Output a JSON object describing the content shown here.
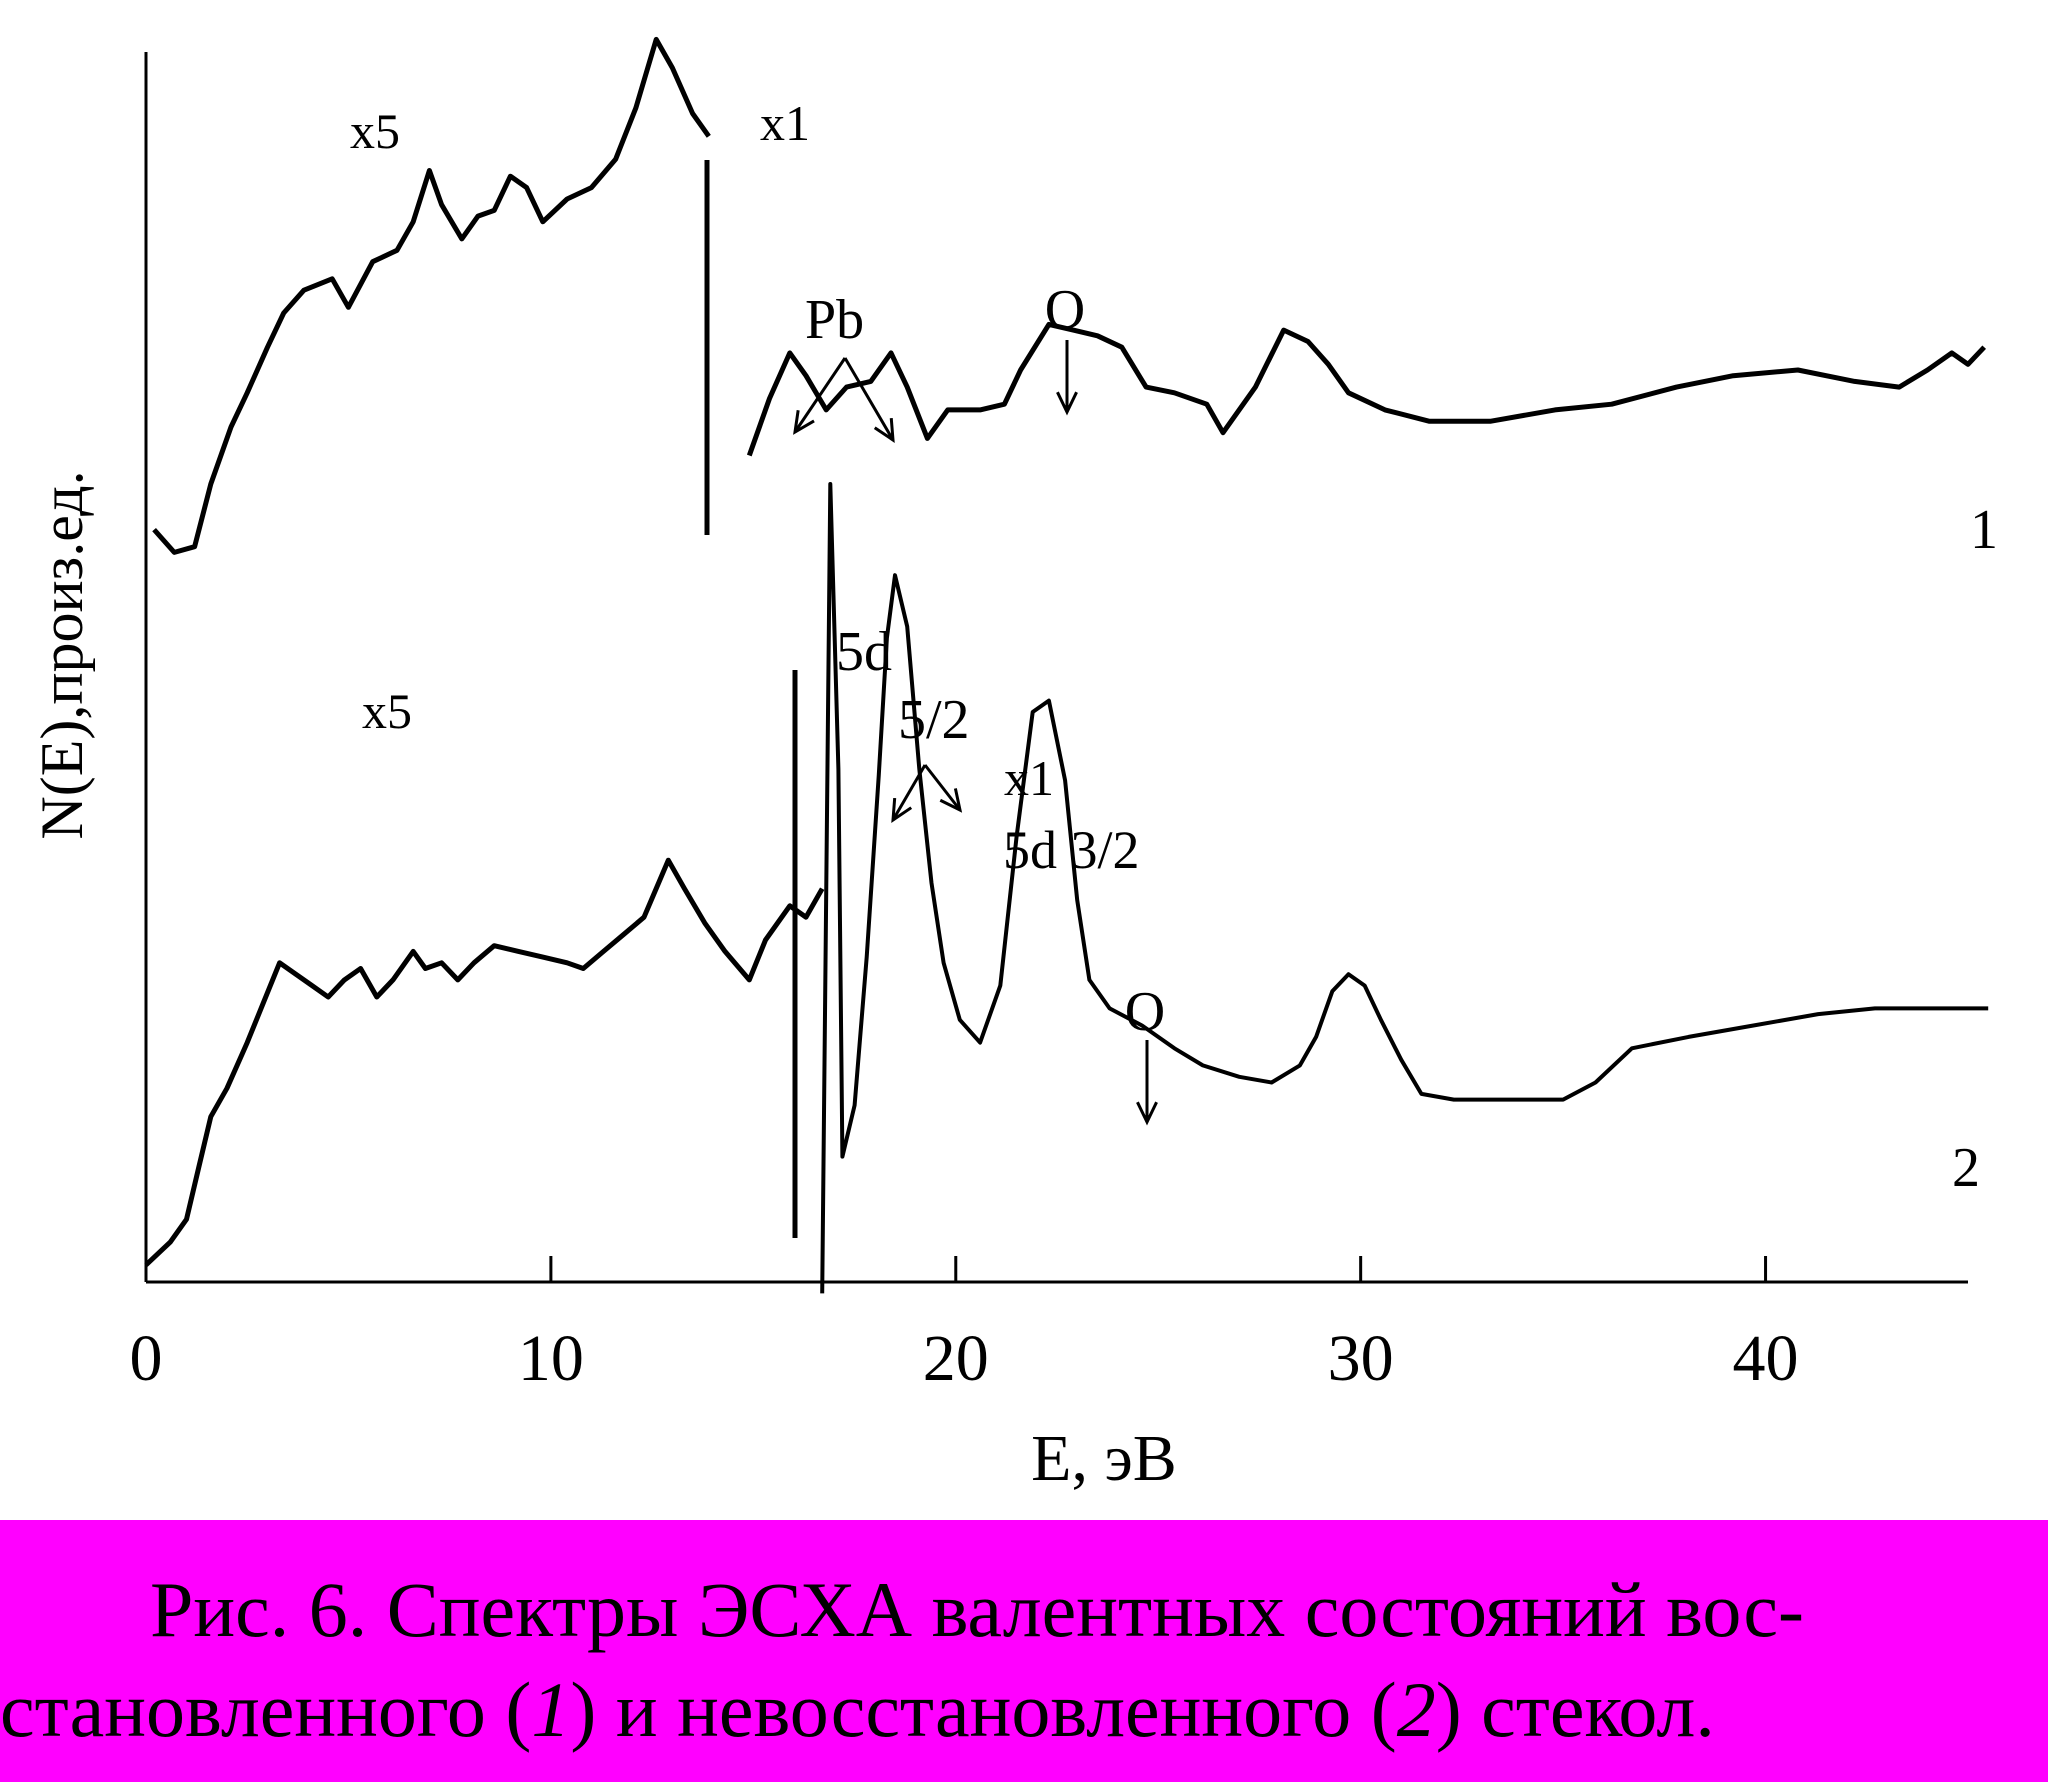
{
  "caption": {
    "line1": "Рис. 6. Спектры ЭСХА валентных состояний вос-",
    "line2_a": "становленного (",
    "line2_num1": "1",
    "line2_b": ") и невосстановленного (",
    "line2_num2": "2",
    "line2_c": ") стекол."
  },
  "colors": {
    "caption_bg": "#ff00ff",
    "line": "#000000",
    "background": "#ffffff"
  },
  "chart_data": {
    "type": "line",
    "title": "",
    "xlabel": "E, эВ",
    "ylabel": "N(E),произ.ед.",
    "xlim": [
      0,
      45
    ],
    "x_ticks": [
      0,
      10,
      20,
      30,
      40
    ],
    "y_ticks": "none",
    "grid": false,
    "series": [
      {
        "name": "1",
        "segments": [
          {
            "scale_label": "x5",
            "points": [
              [
                0.2,
                13.2
              ],
              [
                0.7,
                12.8
              ],
              [
                1.2,
                12.9
              ],
              [
                1.6,
                14.0
              ],
              [
                2.1,
                15.0
              ],
              [
                2.5,
                15.6
              ],
              [
                3.0,
                16.4
              ],
              [
                3.4,
                17.0
              ],
              [
                3.9,
                17.4
              ],
              [
                4.6,
                17.6
              ],
              [
                5.0,
                17.1
              ],
              [
                5.6,
                17.9
              ],
              [
                6.2,
                18.1
              ],
              [
                6.6,
                18.6
              ],
              [
                7.0,
                19.5
              ],
              [
                7.3,
                18.9
              ],
              [
                7.8,
                18.3
              ],
              [
                8.2,
                18.7
              ],
              [
                8.6,
                18.8
              ],
              [
                9.0,
                19.4
              ],
              [
                9.4,
                19.2
              ],
              [
                9.8,
                18.6
              ],
              [
                10.4,
                19.0
              ],
              [
                11.0,
                19.2
              ],
              [
                11.6,
                19.7
              ],
              [
                12.1,
                20.6
              ],
              [
                12.6,
                21.8
              ],
              [
                13.0,
                21.3
              ],
              [
                13.5,
                20.5
              ],
              [
                13.9,
                20.1
              ]
            ]
          },
          {
            "scale_label": "x1",
            "points": [
              [
                14.9,
                14.5
              ],
              [
                15.4,
                15.5
              ],
              [
                15.9,
                16.3
              ],
              [
                16.3,
                15.9
              ],
              [
                16.8,
                15.3
              ],
              [
                17.3,
                15.7
              ],
              [
                17.9,
                15.8
              ],
              [
                18.4,
                16.3
              ],
              [
                18.8,
                15.7
              ],
              [
                19.3,
                14.8
              ],
              [
                19.8,
                15.3
              ],
              [
                20.6,
                15.3
              ],
              [
                21.2,
                15.4
              ],
              [
                21.6,
                16.0
              ],
              [
                22.3,
                16.8
              ],
              [
                22.9,
                16.7
              ],
              [
                23.5,
                16.6
              ],
              [
                24.1,
                16.4
              ],
              [
                24.7,
                15.7
              ],
              [
                25.4,
                15.6
              ],
              [
                26.2,
                15.4
              ],
              [
                26.6,
                14.9
              ],
              [
                27.4,
                15.7
              ],
              [
                28.1,
                16.7
              ],
              [
                28.7,
                16.5
              ],
              [
                29.2,
                16.1
              ],
              [
                29.7,
                15.6
              ],
              [
                30.6,
                15.3
              ],
              [
                31.7,
                15.1
              ],
              [
                33.2,
                15.1
              ],
              [
                34.8,
                15.3
              ],
              [
                36.2,
                15.4
              ],
              [
                37.8,
                15.7
              ],
              [
                39.2,
                15.9
              ],
              [
                40.8,
                16.0
              ],
              [
                42.2,
                15.8
              ],
              [
                43.3,
                15.7
              ],
              [
                44.0,
                16.0
              ],
              [
                44.6,
                16.3
              ],
              [
                45.0,
                16.1
              ],
              [
                45.4,
                16.4
              ]
            ]
          }
        ]
      },
      {
        "name": "2",
        "segments": [
          {
            "scale_label": "x5",
            "points": [
              [
                0.0,
                0.3
              ],
              [
                0.6,
                0.7
              ],
              [
                1.0,
                1.1
              ],
              [
                1.3,
                2.0
              ],
              [
                1.6,
                2.9
              ],
              [
                2.0,
                3.4
              ],
              [
                2.5,
                4.2
              ],
              [
                2.9,
                4.9
              ],
              [
                3.3,
                5.6
              ],
              [
                3.7,
                5.4
              ],
              [
                4.1,
                5.2
              ],
              [
                4.5,
                5.0
              ],
              [
                4.9,
                5.3
              ],
              [
                5.3,
                5.5
              ],
              [
                5.7,
                5.0
              ],
              [
                6.1,
                5.3
              ],
              [
                6.6,
                5.8
              ],
              [
                6.9,
                5.5
              ],
              [
                7.3,
                5.6
              ],
              [
                7.7,
                5.3
              ],
              [
                8.1,
                5.6
              ],
              [
                8.6,
                5.9
              ],
              [
                9.2,
                5.8
              ],
              [
                9.8,
                5.7
              ],
              [
                10.4,
                5.6
              ],
              [
                10.8,
                5.5
              ],
              [
                11.3,
                5.8
              ],
              [
                11.8,
                6.1
              ],
              [
                12.3,
                6.4
              ],
              [
                12.9,
                7.4
              ],
              [
                13.3,
                6.9
              ],
              [
                13.8,
                6.3
              ],
              [
                14.3,
                5.8
              ],
              [
                14.9,
                5.3
              ],
              [
                15.3,
                6.0
              ],
              [
                15.9,
                6.6
              ],
              [
                16.3,
                6.4
              ],
              [
                16.7,
                6.9
              ]
            ]
          },
          {
            "scale_label": "x1",
            "points": [
              [
                16.7,
                -0.2
              ],
              [
                16.9,
                14.0
              ],
              [
                17.1,
                9.0
              ],
              [
                17.2,
                2.2
              ],
              [
                17.5,
                3.1
              ],
              [
                17.8,
                5.7
              ],
              [
                18.1,
                8.9
              ],
              [
                18.3,
                11.3
              ],
              [
                18.5,
                12.4
              ],
              [
                18.8,
                11.5
              ],
              [
                19.1,
                9.0
              ],
              [
                19.4,
                7.0
              ],
              [
                19.7,
                5.6
              ],
              [
                20.1,
                4.6
              ],
              [
                20.6,
                4.2
              ],
              [
                21.1,
                5.2
              ],
              [
                21.5,
                7.8
              ],
              [
                21.9,
                10.0
              ],
              [
                22.3,
                10.2
              ],
              [
                22.7,
                8.8
              ],
              [
                23.0,
                6.7
              ],
              [
                23.3,
                5.3
              ],
              [
                23.8,
                4.8
              ],
              [
                24.6,
                4.5
              ],
              [
                25.4,
                4.1
              ],
              [
                26.1,
                3.8
              ],
              [
                27.0,
                3.6
              ],
              [
                27.8,
                3.5
              ],
              [
                28.5,
                3.8
              ],
              [
                28.9,
                4.3
              ],
              [
                29.3,
                5.1
              ],
              [
                29.7,
                5.4
              ],
              [
                30.1,
                5.2
              ],
              [
                30.5,
                4.6
              ],
              [
                31.0,
                3.9
              ],
              [
                31.5,
                3.3
              ],
              [
                32.3,
                3.2
              ],
              [
                33.5,
                3.2
              ],
              [
                35.0,
                3.2
              ],
              [
                35.8,
                3.5
              ],
              [
                36.7,
                4.1
              ],
              [
                38.1,
                4.3
              ],
              [
                39.7,
                4.5
              ],
              [
                41.3,
                4.7
              ],
              [
                42.7,
                4.8
              ],
              [
                44.0,
                4.8
              ],
              [
                45.0,
                4.8
              ],
              [
                45.5,
                4.8
              ]
            ]
          }
        ]
      }
    ],
    "annotations": [
      {
        "text": "x5"
      },
      {
        "text": "x1"
      },
      {
        "text": "Pb"
      },
      {
        "text": "O"
      },
      {
        "text": "1"
      },
      {
        "text": "x5"
      },
      {
        "text": "5d"
      },
      {
        "text": "5/2"
      },
      {
        "text": "x1"
      },
      {
        "text": "5d 3/2"
      },
      {
        "text": "O"
      },
      {
        "text": "2"
      }
    ]
  }
}
